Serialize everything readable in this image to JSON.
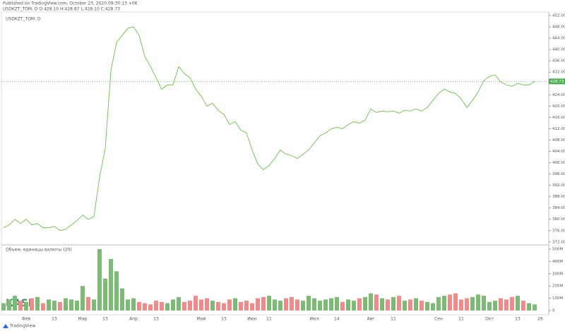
{
  "header": {
    "published": "Published on TradingView.com, October 23, 2020 09:30:13 +06",
    "ohlc": "USDKZT_TOM, D O:428.10 H:428.87 L:428.10 C:428.73",
    "logo": "KASE",
    "footer": "TradingView"
  },
  "chart_data": [
    {
      "type": "line",
      "title": "USDKZT_TOM, D",
      "color": "#6cc04a",
      "last_color": "#4caf50",
      "categories": [
        null,
        null,
        null,
        null,
        "Фев",
        null,
        null,
        null,
        null,
        "13",
        null,
        null,
        null,
        null,
        "Мар",
        null,
        null,
        null,
        "13",
        null,
        null,
        null,
        null,
        "Апр",
        null,
        null,
        null,
        "13",
        null,
        null,
        null,
        null,
        null,
        null,
        null,
        "Май",
        null,
        null,
        null,
        "13",
        null,
        null,
        null,
        null,
        "Июн",
        null,
        null,
        "11",
        null,
        null,
        null,
        null,
        null,
        null,
        null,
        "Июл",
        null,
        null,
        null,
        "14",
        null,
        null,
        null,
        null,
        null,
        "Авг",
        null,
        null,
        null,
        "11",
        null,
        null,
        null,
        null,
        null,
        null,
        null,
        "Сен",
        null,
        null,
        null,
        "11",
        null,
        null,
        null,
        null,
        "Окт",
        null,
        null,
        null,
        null,
        "13",
        null,
        null,
        null,
        "26"
      ],
      "values": [
        377,
        378,
        380,
        378.5,
        380,
        378,
        378.5,
        377,
        377,
        377.5,
        376,
        376.5,
        378,
        379.5,
        381.5,
        380,
        381,
        395,
        405,
        432.5,
        442.5,
        445,
        447.5,
        448,
        445,
        437.5,
        434,
        430,
        426,
        427.5,
        427.5,
        434,
        431.5,
        430,
        426,
        423.5,
        420,
        421,
        418.5,
        417,
        413.5,
        414.5,
        411.5,
        410.5,
        404.5,
        399.5,
        397.5,
        399,
        401.5,
        404.5,
        403,
        402.5,
        401.5,
        403,
        404.5,
        407,
        409.5,
        410.5,
        412,
        412.5,
        412,
        413.5,
        414.5,
        414,
        415,
        419,
        417.75,
        418.25,
        418,
        418.25,
        417.5,
        418.5,
        418.25,
        419,
        418.25,
        419.5,
        422,
        424.5,
        426,
        425,
        424.5,
        422.5,
        419.5,
        422,
        425,
        429,
        430.5,
        431,
        428.5,
        427.5,
        427,
        428,
        427.5,
        427.5,
        428.73,
        null
      ],
      "ylim": [
        371.2,
        453
      ],
      "yticks": [
        {
          "value": 372,
          "label": "372.00"
        },
        {
          "value": 376,
          "label": "376.00"
        },
        {
          "value": 380,
          "label": "380.00"
        },
        {
          "value": 384,
          "label": "384.00"
        },
        {
          "value": 388,
          "label": "388.00"
        },
        {
          "value": 392,
          "label": "392.00"
        },
        {
          "value": 396,
          "label": "396.00"
        },
        {
          "value": 400,
          "label": "400.00"
        },
        {
          "value": 404,
          "label": "404.00"
        },
        {
          "value": 408,
          "label": "408.00"
        },
        {
          "value": 412,
          "label": "412.00"
        },
        {
          "value": 416,
          "label": "416.00"
        },
        {
          "value": 420,
          "label": "420.00"
        },
        {
          "value": 424,
          "label": "424.00"
        },
        {
          "value": 428,
          "label": "428.00"
        },
        {
          "value": 432,
          "label": "432.00"
        },
        {
          "value": 436,
          "label": "436.00"
        },
        {
          "value": 440,
          "label": "440.00"
        },
        {
          "value": 444,
          "label": "444.00"
        },
        {
          "value": 448,
          "label": "448.00"
        },
        {
          "value": 452,
          "label": "452.00"
        }
      ]
    },
    {
      "type": "bar",
      "title": "Объем, единицы валюты (20)",
      "up_color": "#7cbb73",
      "down_color": "#f28a8a",
      "values": [
        60,
        90,
        120,
        80,
        70,
        100,
        110,
        60,
        90,
        80,
        70,
        100,
        90,
        80,
        200,
        110,
        90,
        500,
        260,
        420,
        320,
        180,
        90,
        100,
        70,
        60,
        50,
        80,
        70,
        60,
        90,
        110,
        70,
        80,
        120,
        90,
        100,
        80,
        70,
        60,
        90,
        100,
        70,
        80,
        60,
        100,
        110,
        120,
        90,
        80,
        100,
        110,
        90,
        80,
        120,
        100,
        80,
        90,
        100,
        110,
        70,
        90,
        80,
        100,
        110,
        140,
        130,
        100,
        90,
        110,
        120,
        80,
        90,
        100,
        80,
        70,
        60,
        110,
        120,
        130,
        140,
        90,
        100,
        110,
        130,
        120,
        70,
        80,
        100,
        90,
        110,
        120,
        80,
        60,
        50,
        null
      ],
      "ylim": [
        0,
        517
      ],
      "yticks": [
        0,
        {
          "value": 100,
          "label": "100M"
        },
        {
          "value": 200,
          "label": "200M"
        },
        {
          "value": 300,
          "label": "300M"
        },
        {
          "value": 400,
          "label": "400M"
        },
        {
          "value": 500,
          "label": "500M"
        }
      ]
    }
  ]
}
